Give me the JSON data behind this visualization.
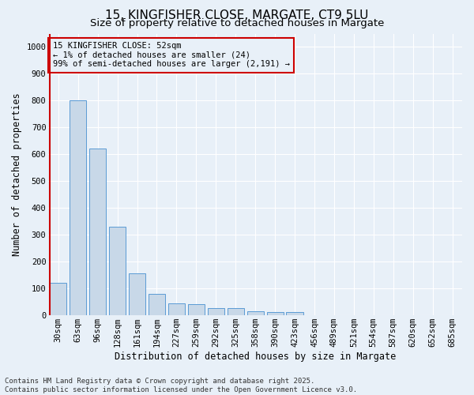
{
  "title1": "15, KINGFISHER CLOSE, MARGATE, CT9 5LU",
  "title2": "Size of property relative to detached houses in Margate",
  "xlabel": "Distribution of detached houses by size in Margate",
  "ylabel": "Number of detached properties",
  "categories": [
    "30sqm",
    "63sqm",
    "96sqm",
    "128sqm",
    "161sqm",
    "194sqm",
    "227sqm",
    "259sqm",
    "292sqm",
    "325sqm",
    "358sqm",
    "390sqm",
    "423sqm",
    "456sqm",
    "489sqm",
    "521sqm",
    "554sqm",
    "587sqm",
    "620sqm",
    "652sqm",
    "685sqm"
  ],
  "values": [
    120,
    800,
    620,
    330,
    155,
    78,
    42,
    40,
    27,
    27,
    15,
    12,
    10,
    0,
    0,
    0,
    0,
    0,
    0,
    0,
    0
  ],
  "bar_color": "#c8d8e8",
  "bar_edge_color": "#5b9bd5",
  "vline_color": "#cc0000",
  "annotation_title": "15 KINGFISHER CLOSE: 52sqm",
  "annotation_line1": "← 1% of detached houses are smaller (24)",
  "annotation_line2": "99% of semi-detached houses are larger (2,191) →",
  "annotation_box_color": "#cc0000",
  "ylim": [
    0,
    1050
  ],
  "yticks": [
    0,
    100,
    200,
    300,
    400,
    500,
    600,
    700,
    800,
    900,
    1000
  ],
  "bg_color": "#e8f0f8",
  "footer1": "Contains HM Land Registry data © Crown copyright and database right 2025.",
  "footer2": "Contains public sector information licensed under the Open Government Licence v3.0.",
  "grid_color": "#ffffff",
  "title_fontsize": 11,
  "subtitle_fontsize": 9.5,
  "axis_label_fontsize": 8.5,
  "tick_fontsize": 7.5,
  "footer_fontsize": 6.5,
  "annotation_fontsize": 7.5
}
